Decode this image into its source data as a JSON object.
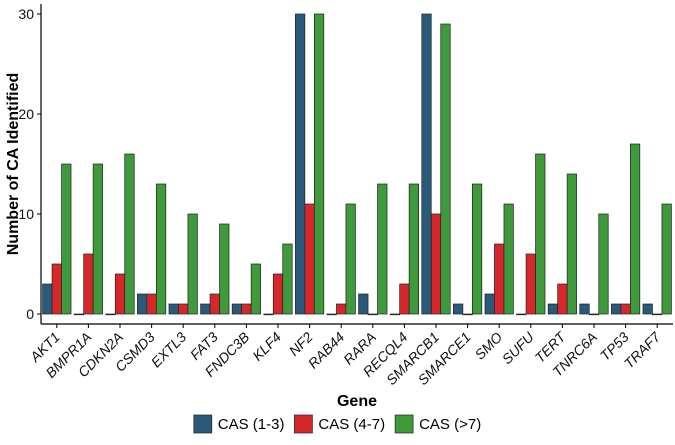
{
  "chart_data": {
    "type": "bar",
    "title": "",
    "xlabel": "Gene",
    "ylabel": "Number of CA Identified",
    "ylim": [
      -1,
      31
    ],
    "yticks": [
      0,
      10,
      20,
      30
    ],
    "grid": false,
    "legend_position": "bottom",
    "categories": [
      "AKT1",
      "BMPR1A",
      "CDKN2A",
      "CSMD3",
      "EXTL3",
      "FAT3",
      "FNDC3B",
      "KLF4",
      "NF2",
      "RAB44",
      "RARA",
      "RECQL4",
      "SMARCB1",
      "SMARCE1",
      "SMO",
      "SUFU",
      "TERT",
      "TNRC6A",
      "TP53",
      "TRAF7"
    ],
    "series": [
      {
        "name": "CAS (1-3)",
        "color": "#2a5a7a",
        "values": [
          3,
          0,
          0,
          2,
          1,
          1,
          1,
          0,
          30,
          0,
          2,
          0,
          30,
          1,
          2,
          0,
          1,
          1,
          1,
          1
        ]
      },
      {
        "name": "CAS (4-7)",
        "color": "#d6282b",
        "values": [
          5,
          6,
          4,
          2,
          1,
          2,
          1,
          4,
          11,
          1,
          0,
          3,
          10,
          0,
          7,
          6,
          3,
          0,
          1,
          0
        ]
      },
      {
        "name": "CAS (>7)",
        "color": "#3e9a3a",
        "values": [
          15,
          15,
          16,
          13,
          10,
          9,
          5,
          7,
          30,
          11,
          13,
          13,
          29,
          13,
          11,
          16,
          14,
          10,
          17,
          11
        ]
      }
    ]
  }
}
